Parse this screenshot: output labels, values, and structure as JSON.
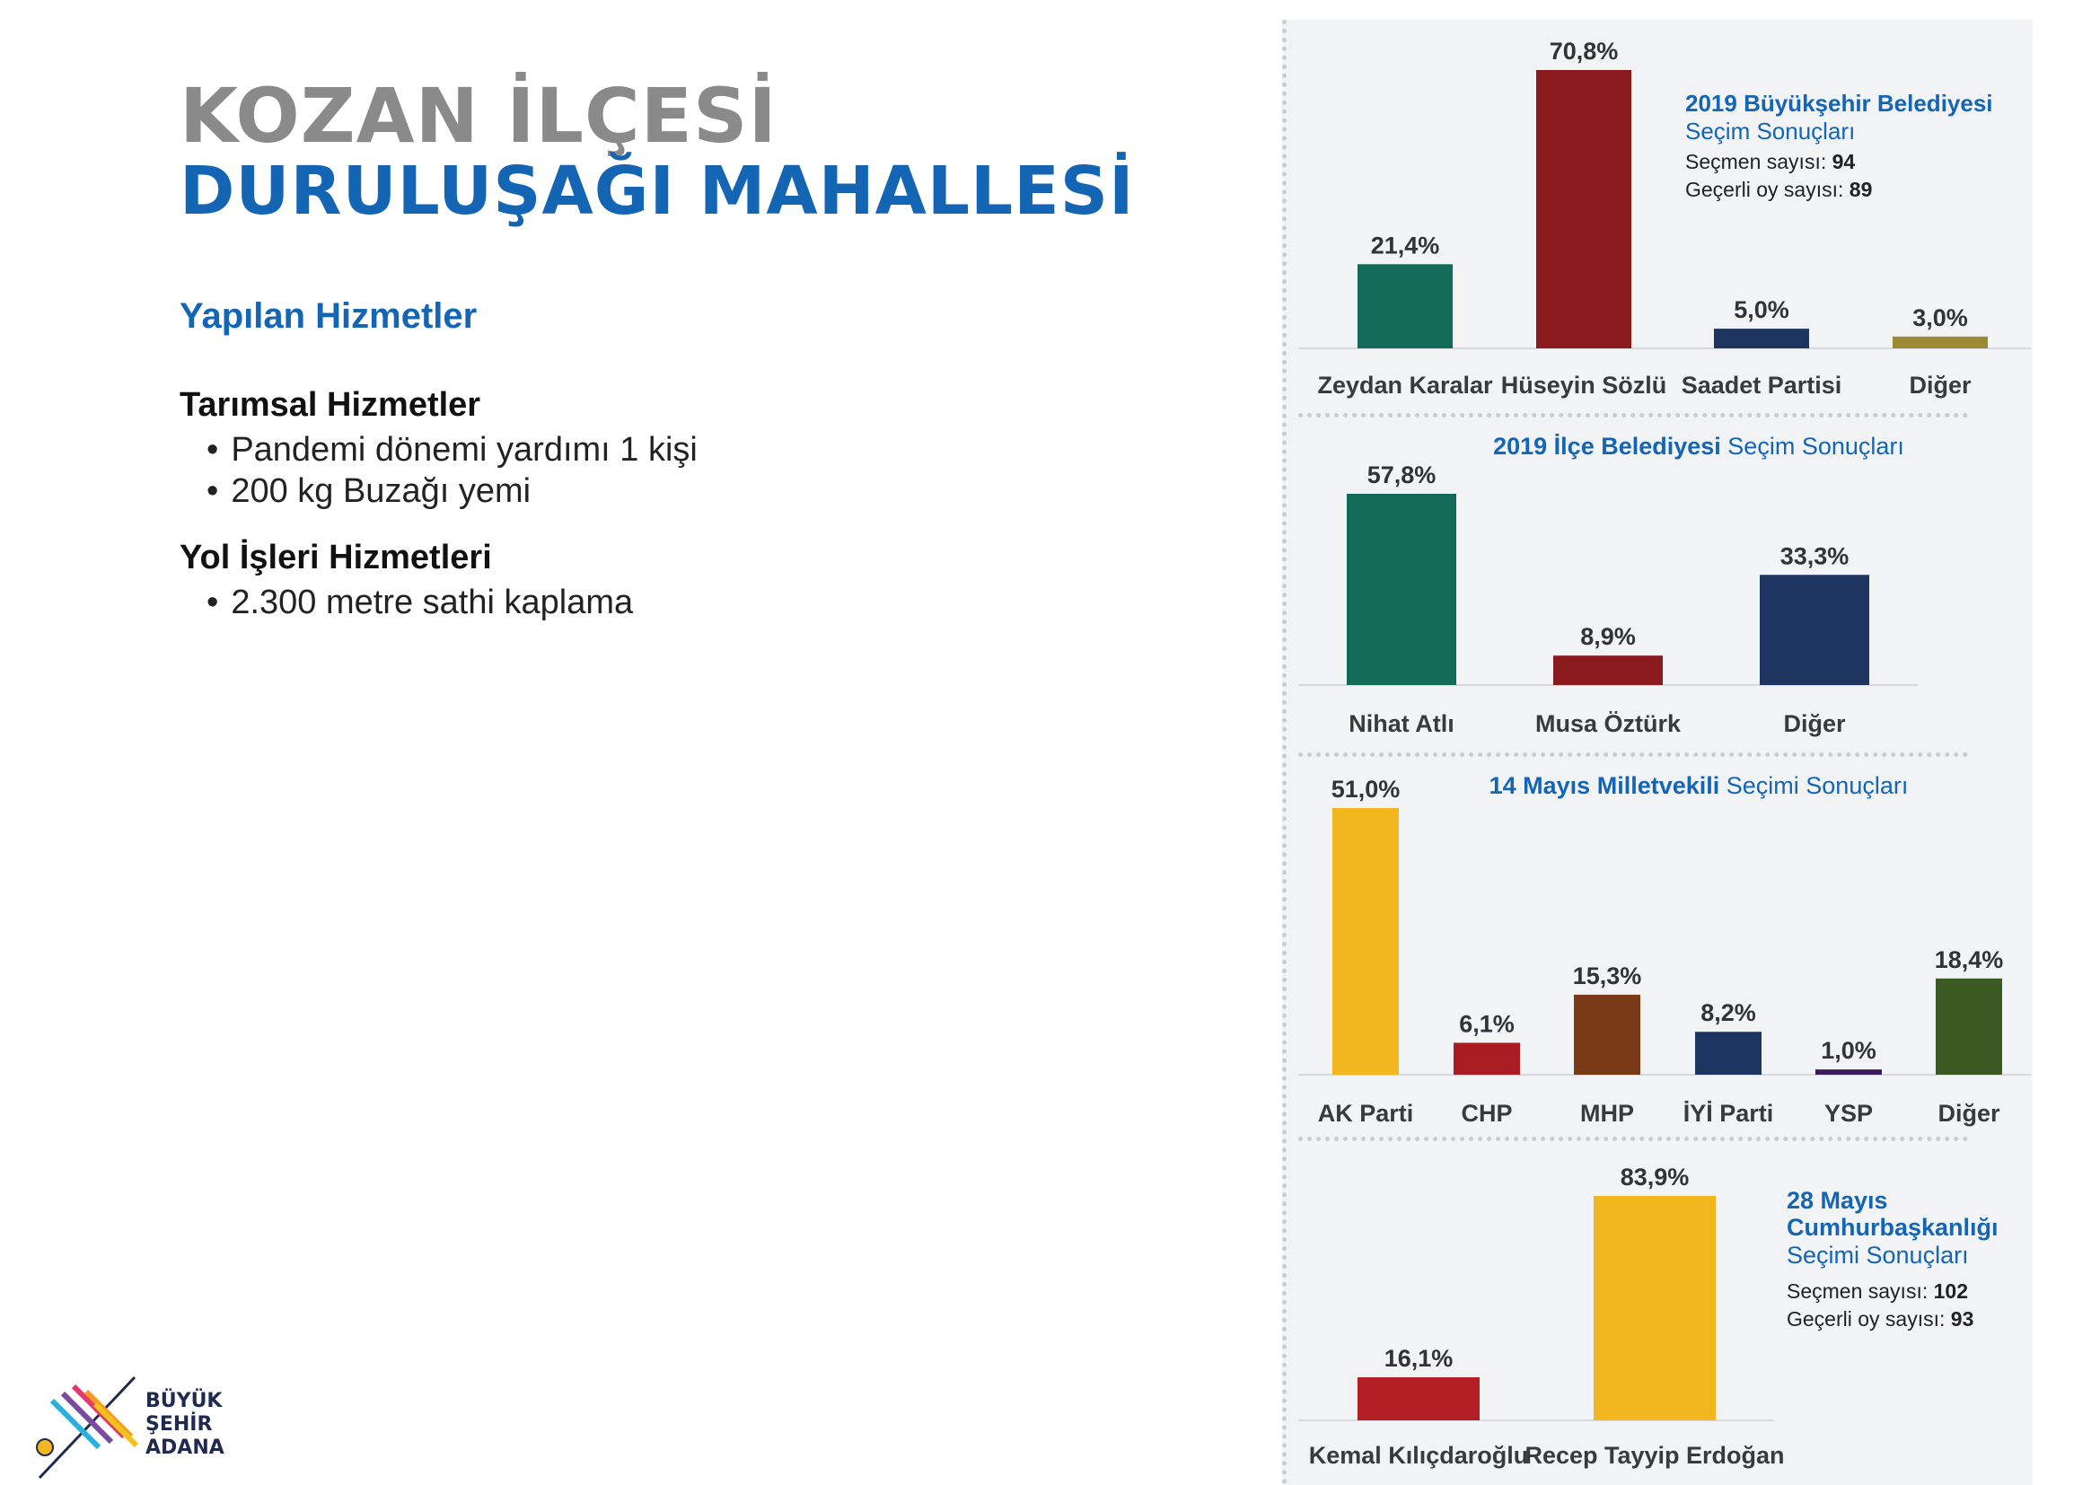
{
  "header": {
    "line1": "KOZAN İLÇESİ",
    "line2": "DURULUŞAĞI MAHALLESİ"
  },
  "services": {
    "heading": "Yapılan Hizmetler",
    "categories": [
      {
        "title": "Tarımsal Hizmetler",
        "items": [
          "Pandemi dönemi yardımı 1 kişi",
          "200 kg Buzağı yemi"
        ]
      },
      {
        "title": "Yol İşleri Hizmetleri",
        "items": [
          "2.300 metre sathi kaplama"
        ]
      }
    ]
  },
  "logo": {
    "line1": "BÜYÜK",
    "line2": "ŞEHİR",
    "line3": "ADANA"
  },
  "chart_data": [
    {
      "type": "bar",
      "title_bold": "2019 Büyükşehir Belediyesi",
      "title_light": "Seçim Sonuçları",
      "stats": [
        {
          "label": "Seçmen sayısı: ",
          "value": "94"
        },
        {
          "label": "Geçerli oy sayısı: ",
          "value": "89"
        }
      ],
      "categories": [
        "Zeydan Karalar",
        "Hüseyin Sözlü",
        "Saadet Partisi",
        "Diğer"
      ],
      "values": [
        21.4,
        70.8,
        5.0,
        3.0
      ],
      "labels": [
        "21,4%",
        "70,8%",
        "5,0%",
        "3,0%"
      ],
      "colors": [
        "#136a58",
        "#8b1a1f",
        "#1e3461",
        "#9a8a34"
      ]
    },
    {
      "type": "bar",
      "title_bold": "2019 İlçe Belediyesi",
      "title_light": "Seçim Sonuçları",
      "categories": [
        "Nihat Atlı",
        "Musa Öztürk",
        "Diğer"
      ],
      "values": [
        57.8,
        8.9,
        33.3
      ],
      "labels": [
        "57,8%",
        "8,9%",
        "33,3%"
      ],
      "colors": [
        "#136a58",
        "#8b1a1f",
        "#1e3461"
      ]
    },
    {
      "type": "bar",
      "title_bold": "14 Mayıs Milletvekili",
      "title_light": "Seçimi Sonuçları",
      "categories": [
        "AK Parti",
        "CHP",
        "MHP",
        "İYİ Parti",
        "YSP",
        "Diğer"
      ],
      "values": [
        51.0,
        6.1,
        15.3,
        8.2,
        1.0,
        18.4
      ],
      "labels": [
        "51,0%",
        "6,1%",
        "15,3%",
        "8,2%",
        "1,0%",
        "18,4%"
      ],
      "colors": [
        "#f2b71e",
        "#a81c22",
        "#7a3a17",
        "#1e3461",
        "#3a1a5a",
        "#3b5a24"
      ]
    },
    {
      "type": "bar",
      "title_bold": "28 Mayıs Cumhurbaşkanlığı",
      "title_light": "Seçimi Sonuçları",
      "stats": [
        {
          "label": "Seçmen sayısı: ",
          "value": "102"
        },
        {
          "label": "Geçerli oy sayısı: ",
          "value": "93"
        }
      ],
      "categories": [
        "Kemal Kılıçdaroğlu",
        "Recep Tayyip Erdoğan"
      ],
      "values": [
        16.1,
        83.9
      ],
      "labels": [
        "16,1%",
        "83,9%"
      ],
      "colors": [
        "#b21f25",
        "#f2b71e"
      ]
    }
  ]
}
